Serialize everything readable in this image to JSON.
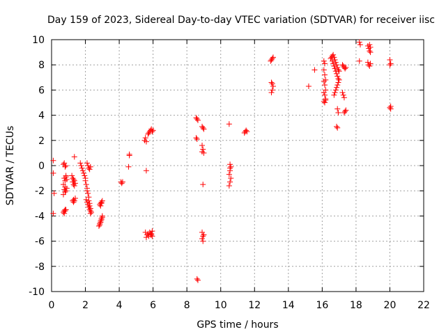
{
  "chart_data": {
    "type": "scatter",
    "title": "Day 159 of 2023, Sidereal Day-to-day VTEC variation (SDTVAR) for receiver iisc",
    "xlabel": "GPS time / hours",
    "ylabel": "SDTVAR / TECUs",
    "xlim": [
      0,
      22
    ],
    "ylim": [
      -10,
      10
    ],
    "x_ticks": [
      0,
      2,
      4,
      6,
      8,
      10,
      12,
      14,
      16,
      18,
      20,
      22
    ],
    "y_ticks": [
      -10,
      -8,
      -6,
      -4,
      -2,
      0,
      2,
      4,
      6,
      8,
      10
    ],
    "x_tick_labels": [
      "0",
      "2",
      "4",
      "6",
      "8",
      "10",
      "12",
      "14",
      "16",
      "18",
      "20",
      "22"
    ],
    "y_tick_labels": [
      "-10",
      "-8",
      "-6",
      "-4",
      "-2",
      "0",
      "2",
      "4",
      "6",
      "8",
      "10"
    ],
    "grid": true,
    "marker": "+",
    "color": "#ff0000",
    "series": [
      {
        "name": "SDTVAR",
        "x": [
          0.1,
          0.1,
          0.15,
          0.1,
          0.7,
          0.75,
          0.8,
          0.85,
          0.75,
          0.8,
          0.85,
          0.7,
          0.8,
          0.75,
          0.7,
          0.8,
          0.85,
          0.9,
          0.9,
          0.85,
          0.8,
          0.75,
          0.7,
          0.75,
          0.8,
          0.85,
          1.2,
          1.25,
          1.3,
          1.35,
          1.25,
          1.3,
          1.35,
          1.4,
          1.3,
          1.35,
          1.3,
          1.25,
          1.4,
          1.35,
          1.7,
          1.75,
          1.8,
          1.85,
          1.9,
          1.95,
          2.0,
          2.0,
          2.05,
          2.1,
          2.1,
          2.15,
          2.2,
          2.2,
          2.25,
          2.25,
          2.3,
          2.3,
          2.35,
          2.1,
          2.15,
          2.2,
          2.25,
          2.3,
          2.05,
          2.1,
          2.15,
          2.2,
          2.25,
          2.3,
          2.8,
          2.85,
          2.9,
          2.95,
          3.0,
          2.85,
          2.9,
          2.95,
          3.0,
          2.9,
          2.95,
          3.0,
          2.85,
          2.9,
          2.95,
          4.1,
          4.15,
          4.2,
          4.6,
          4.6,
          4.55,
          5.5,
          5.55,
          5.6,
          5.6,
          5.55,
          5.65,
          5.6,
          5.7,
          5.75,
          5.8,
          5.85,
          5.9,
          5.95,
          5.7,
          5.75,
          5.8,
          5.85,
          5.9,
          5.95,
          6.0,
          5.95,
          5.9,
          5.85,
          8.55,
          8.6,
          8.65,
          8.55,
          8.6,
          8.6,
          8.65,
          8.9,
          8.95,
          9.0,
          8.9,
          8.95,
          8.9,
          9.0,
          8.95,
          8.9,
          8.95,
          8.9,
          8.95,
          9.0,
          10.5,
          10.55,
          10.6,
          10.55,
          10.5,
          10.6,
          10.55,
          10.5,
          10.55,
          11.4,
          11.45,
          11.5,
          11.55,
          12.95,
          13.0,
          13.05,
          13.1,
          13.0,
          13.05,
          13.1,
          13.05,
          13.0,
          15.2,
          15.55,
          16.1,
          16.15,
          16.1,
          16.15,
          16.2,
          16.1,
          16.15,
          16.2,
          16.1,
          16.15,
          16.2,
          16.1,
          16.15,
          16.2,
          16.5,
          16.55,
          16.6,
          16.65,
          16.7,
          16.75,
          16.8,
          16.85,
          16.9,
          16.95,
          17.0,
          16.6,
          16.65,
          16.7,
          16.75,
          16.8,
          16.85,
          16.9,
          16.95,
          16.7,
          16.75,
          16.8,
          16.85,
          16.9,
          16.95,
          17.0,
          16.9,
          16.95,
          16.85,
          16.9,
          17.2,
          17.25,
          17.3,
          17.35,
          17.4,
          17.2,
          17.25,
          17.3,
          17.3,
          17.35,
          17.4,
          18.2,
          18.25,
          18.2,
          18.7,
          18.75,
          18.8,
          18.85,
          18.7,
          18.75,
          18.8,
          18.85,
          18.8,
          18.85,
          20.0,
          20.05,
          20.0,
          20.05,
          20.0,
          20.05
        ],
        "y": [
          0.4,
          -0.6,
          -2.2,
          -3.8,
          0.1,
          0.2,
          -0.1,
          0.0,
          -1.0,
          -1.2,
          -0.9,
          -1.5,
          -1.7,
          -1.9,
          -2.3,
          -2.1,
          -2.0,
          -1.8,
          -1.1,
          -0.8,
          -3.5,
          -3.6,
          -3.7,
          -3.8,
          -3.6,
          -3.5,
          -0.8,
          -1.0,
          -1.1,
          -1.2,
          -1.3,
          -1.5,
          -1.6,
          -1.4,
          -2.7,
          -2.8,
          -2.9,
          -2.8,
          -2.6,
          0.7,
          0.2,
          0.0,
          -0.2,
          -0.4,
          -0.6,
          -0.8,
          -1.0,
          -1.2,
          -1.5,
          -1.8,
          -2.0,
          -2.2,
          -2.5,
          -2.8,
          -3.0,
          -3.2,
          -3.4,
          -3.6,
          -3.7,
          0.2,
          0.0,
          -0.2,
          -0.3,
          -0.1,
          -2.7,
          -2.9,
          -3.1,
          -3.3,
          -3.5,
          -3.8,
          -4.8,
          -4.6,
          -4.4,
          -4.2,
          -4.0,
          -4.7,
          -4.5,
          -4.3,
          -4.1,
          -3.0,
          -2.9,
          -2.8,
          -3.1,
          -3.2,
          -3.0,
          -1.3,
          -1.4,
          -1.3,
          0.8,
          0.9,
          -0.1,
          2.0,
          2.2,
          1.9,
          -0.4,
          -5.3,
          -5.5,
          -5.7,
          -5.4,
          -5.6,
          -5.3,
          -5.5,
          -5.4,
          -5.6,
          2.5,
          2.6,
          2.7,
          2.8,
          2.9,
          2.7,
          2.8,
          -5.2,
          -5.5,
          -5.4,
          3.8,
          3.7,
          3.6,
          2.2,
          2.1,
          -9.0,
          -9.1,
          3.1,
          3.0,
          2.9,
          1.6,
          1.3,
          1.1,
          1.0,
          -1.5,
          -5.3,
          -5.6,
          -5.8,
          -6.0,
          -5.5,
          3.3,
          0.1,
          -0.1,
          -0.4,
          -0.7,
          -1.0,
          -1.3,
          -1.6,
          -0.2,
          2.6,
          2.7,
          2.8,
          2.7,
          8.3,
          8.4,
          8.5,
          8.6,
          6.6,
          6.5,
          6.3,
          6.0,
          5.8,
          6.3,
          7.6,
          8.3,
          8.1,
          7.6,
          7.2,
          6.8,
          6.7,
          6.4,
          6.0,
          5.8,
          5.6,
          5.2,
          5.1,
          5.0,
          5.3,
          8.5,
          8.6,
          8.7,
          8.8,
          8.6,
          8.4,
          8.2,
          8.0,
          7.8,
          7.6,
          7.5,
          8.3,
          8.1,
          7.9,
          7.7,
          7.5,
          7.3,
          7.1,
          6.9,
          5.6,
          5.8,
          6.0,
          6.2,
          6.4,
          6.6,
          6.8,
          4.5,
          4.2,
          3.1,
          3.0,
          8.0,
          7.9,
          7.8,
          7.7,
          7.8,
          5.8,
          5.6,
          5.4,
          4.2,
          4.3,
          4.4,
          9.8,
          9.6,
          8.3,
          9.5,
          9.3,
          9.1,
          9.0,
          8.2,
          8.0,
          7.9,
          8.1,
          9.6,
          9.4,
          8.4,
          8.1,
          8.0,
          4.7,
          4.6,
          4.5
        ]
      }
    ]
  }
}
